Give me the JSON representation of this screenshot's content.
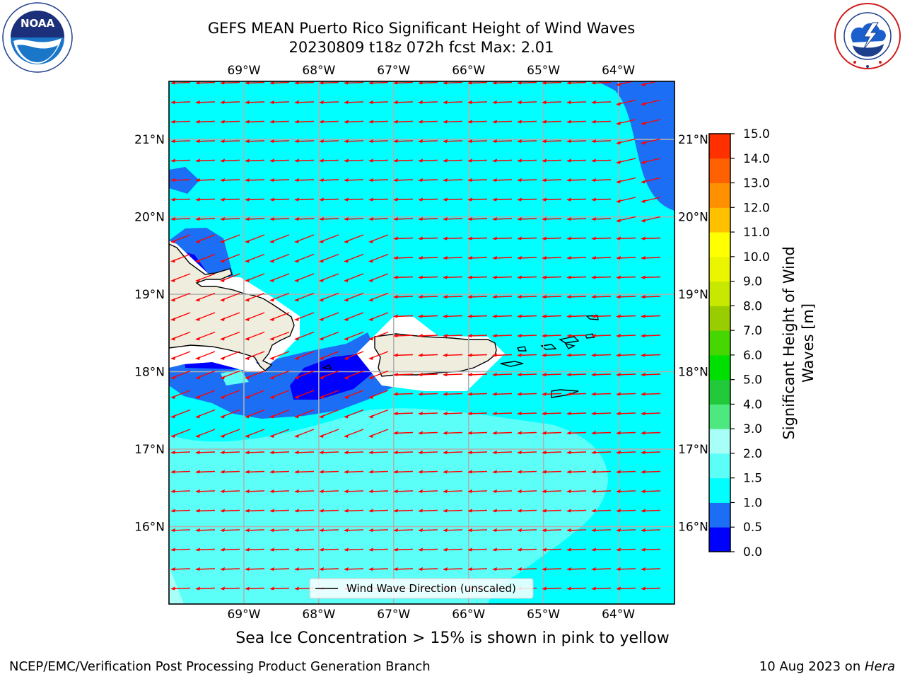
{
  "header": {
    "title_line1": "GEFS MEAN Puerto Rico Significant Height of Wind Waves",
    "title_line2": "20230809 t18z 072h fcst   Max: 2.01"
  },
  "logos": {
    "noaa_text": "NOAA",
    "noaa_ring_text": "NATIONAL OCEANIC AND ATMOSPHERIC ADMINISTRATION · U.S. DEPARTMENT OF COMMERCE",
    "nws_ring_text": "NATIONAL WEATHER SERVICE"
  },
  "map": {
    "lon_range": [
      -70.0,
      -63.25
    ],
    "lat_range": [
      15.0,
      21.75
    ],
    "lon_ticks": [
      "69°W",
      "68°W",
      "67°W",
      "66°W",
      "65°W",
      "64°W"
    ],
    "lon_tick_values": [
      -69,
      -68,
      -67,
      -66,
      -65,
      -64
    ],
    "lat_ticks": [
      "21°N",
      "20°N",
      "19°N",
      "18°N",
      "17°N",
      "16°N"
    ],
    "lat_tick_values": [
      21,
      20,
      19,
      18,
      17,
      16
    ],
    "gridlines": true,
    "arrow_color": "#ff0000",
    "arrow_direction": "westward",
    "legend_label": "Wind Wave Direction (unscaled)",
    "land_color": "#efedde",
    "coast_color": "#000000"
  },
  "colorbar": {
    "label": "Significant Height of Wind Waves [m]",
    "tick_labels": [
      "0.0",
      "0.5",
      "1.0",
      "1.5",
      "2.0",
      "3.0",
      "4.0",
      "5.0",
      "6.0",
      "7.0",
      "8.0",
      "9.0",
      "10.0",
      "11.0",
      "12.0",
      "13.0",
      "14.0",
      "15.0"
    ],
    "colors": [
      "#0000ff",
      "#1c6ff5",
      "#00ffff",
      "#5cfff7",
      "#a8fff8",
      "#4de880",
      "#22c93a",
      "#00e000",
      "#47d700",
      "#9acd00",
      "#c8e800",
      "#ebf500",
      "#ffff00",
      "#ffc000",
      "#ff9000",
      "#ff6000",
      "#ff3000",
      "#ff0000"
    ]
  },
  "footer": {
    "note": "Sea Ice Concentration > 15% is shown in pink to yellow",
    "left": "NCEP/EMC/Verification Post Processing Product Generation Branch",
    "right_date": "10 Aug 2023 on ",
    "right_host": "Hera"
  }
}
